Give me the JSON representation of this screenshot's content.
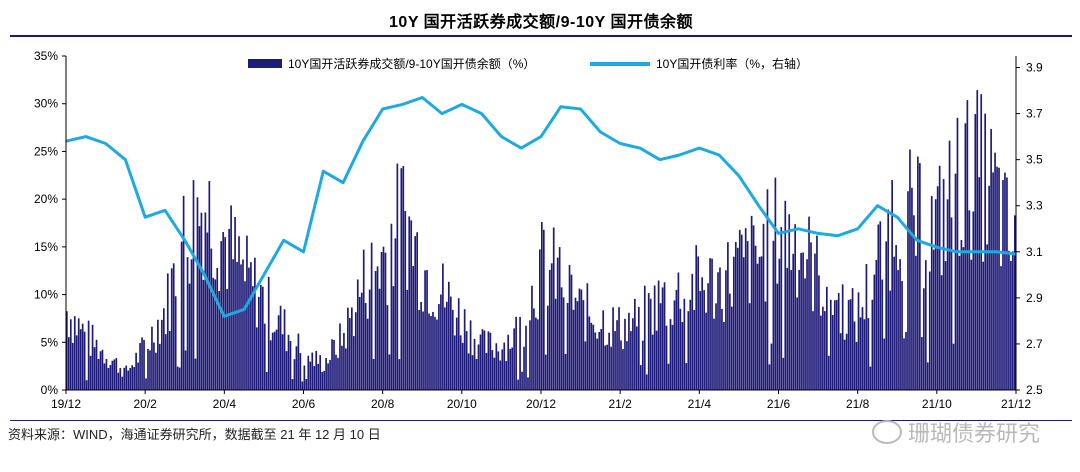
{
  "chart_data": {
    "type": "bar",
    "title": "10Y 国开活跃券成交额/9-10Y 国开债余额",
    "legend": {
      "bars_label": "10Y国开活跃券成交额/9-10Y国开债余额（%）",
      "line_label": "10Y国开债利率（%，右轴）",
      "placement": "top"
    },
    "x_tick_labels": [
      "19/12",
      "20/2",
      "20/4",
      "20/6",
      "20/8",
      "20/10",
      "20/12",
      "21/2",
      "21/4",
      "21/6",
      "21/8",
      "21/10",
      "21/12"
    ],
    "y_left": {
      "ticks": [
        "0%",
        "5%",
        "10%",
        "15%",
        "20%",
        "25%",
        "30%",
        "35%"
      ],
      "range": [
        0,
        35
      ],
      "unit": "%"
    },
    "y_right": {
      "ticks": [
        "2.5",
        "2.7",
        "2.9",
        "3.1",
        "3.3",
        "3.5",
        "3.7",
        "3.9"
      ],
      "range": [
        2.5,
        3.95
      ]
    },
    "series": [
      {
        "name": "10Y国开活跃券成交额/9-10Y国开债余额（%）",
        "kind": "bar",
        "color": "#1e1a78",
        "points_month_index": [
          0,
          0.5,
          1,
          1.5,
          2,
          2.5,
          3,
          3.5,
          4,
          4.5,
          5,
          5.5,
          6,
          6.5,
          7,
          7.5,
          8,
          8.5,
          9,
          9.5,
          10,
          10.5,
          11,
          11.5,
          12,
          12.5,
          13,
          13.5,
          14,
          14.5,
          15,
          15.5,
          16,
          16.5,
          17,
          17.5,
          18,
          18.5,
          19,
          19.5,
          20,
          20.5,
          21,
          21.5,
          22,
          22.5,
          23,
          23.5,
          24
        ],
        "values": [
          9,
          6,
          4,
          2,
          5,
          9,
          18,
          21,
          17,
          13,
          10,
          7,
          4,
          3,
          6,
          12,
          15,
          20,
          14,
          11,
          8,
          5,
          5,
          7,
          14,
          13,
          9,
          8,
          7,
          8,
          10,
          11,
          12,
          12,
          14,
          15,
          18,
          17,
          13,
          10,
          8,
          14,
          21,
          19,
          18,
          23,
          25,
          22,
          15
        ]
      },
      {
        "name": "10Y国开债利率（%，右轴）",
        "kind": "line",
        "color": "#1fa9e1",
        "points_month_index": [
          0,
          0.5,
          1,
          1.5,
          2,
          2.5,
          3,
          3.5,
          4,
          4.5,
          5,
          5.5,
          6,
          6.5,
          7,
          7.5,
          8,
          8.5,
          9,
          9.5,
          10,
          10.5,
          11,
          11.5,
          12,
          12.5,
          13,
          13.5,
          14,
          14.5,
          15,
          15.5,
          16,
          16.5,
          17,
          17.5,
          18,
          18.5,
          19,
          19.5,
          20,
          20.5,
          21,
          21.5,
          22,
          22.5,
          23,
          23.5,
          24
        ],
        "values": [
          3.58,
          3.6,
          3.57,
          3.5,
          3.25,
          3.28,
          3.15,
          3.0,
          2.82,
          2.85,
          3.0,
          3.15,
          3.1,
          3.45,
          3.4,
          3.58,
          3.72,
          3.74,
          3.77,
          3.7,
          3.74,
          3.7,
          3.6,
          3.55,
          3.6,
          3.73,
          3.72,
          3.62,
          3.57,
          3.55,
          3.5,
          3.52,
          3.55,
          3.52,
          3.43,
          3.3,
          3.18,
          3.2,
          3.18,
          3.17,
          3.2,
          3.3,
          3.25,
          3.15,
          3.12,
          3.1,
          3.1,
          3.1,
          3.09
        ]
      }
    ],
    "xlabel": "",
    "ylabel": ""
  },
  "footer": {
    "source": "资料来源：WIND，海通证券研究所，数据截至 21 年 12 月 10 日"
  },
  "watermark": {
    "text": "珊瑚债券研究"
  },
  "colors": {
    "bar": "#1e1a78",
    "line": "#1fa9e1",
    "rule": "#1a1a6e"
  }
}
